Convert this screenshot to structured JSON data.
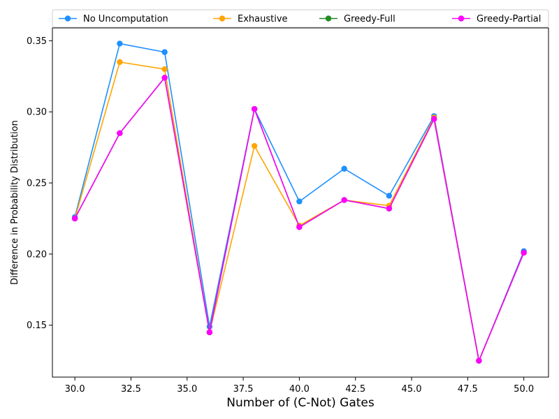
{
  "chart_data": {
    "type": "line",
    "title": "",
    "xlabel": "Number of (C-Not) Gates",
    "ylabel": "Difference in Probability Distribution",
    "xlim": [
      29,
      51.1
    ],
    "ylim": [
      0.1135,
      0.359
    ],
    "xticks": [
      30.0,
      32.5,
      35.0,
      37.5,
      40.0,
      42.5,
      45.0,
      47.5,
      50.0
    ],
    "xtick_labels": [
      "30.0",
      "32.5",
      "35.0",
      "37.5",
      "40.0",
      "42.5",
      "45.0",
      "47.5",
      "50.0"
    ],
    "yticks": [
      0.15,
      0.2,
      0.25,
      0.3,
      0.35
    ],
    "ytick_labels": [
      "0.15",
      "0.20",
      "0.25",
      "0.30",
      "0.35"
    ],
    "grid": false,
    "legend_position": "top, above plot, 4 columns",
    "x": [
      30,
      32,
      34,
      36,
      38,
      40,
      42,
      44,
      46,
      48,
      50
    ],
    "series": [
      {
        "name": "No Uncomputation",
        "color": "#1e90ff",
        "values": [
          0.226,
          0.348,
          0.342,
          0.149,
          0.302,
          0.237,
          0.26,
          0.241,
          0.297,
          0.125,
          0.202
        ]
      },
      {
        "name": "Exhaustive",
        "color": "#ffa500",
        "values": [
          0.225,
          0.335,
          0.33,
          0.145,
          0.276,
          0.22,
          0.238,
          0.234,
          0.296,
          0.125,
          0.201
        ]
      },
      {
        "name": "Greedy-Full",
        "color": "#228b22",
        "values": [
          0.225,
          0.285,
          0.324,
          0.145,
          0.302,
          0.219,
          0.238,
          0.232,
          0.295,
          0.125,
          0.201
        ]
      },
      {
        "name": "Greedy-Partial",
        "color": "#ff00ff",
        "values": [
          0.225,
          0.285,
          0.324,
          0.145,
          0.302,
          0.219,
          0.238,
          0.232,
          0.295,
          0.125,
          0.201
        ]
      }
    ]
  }
}
